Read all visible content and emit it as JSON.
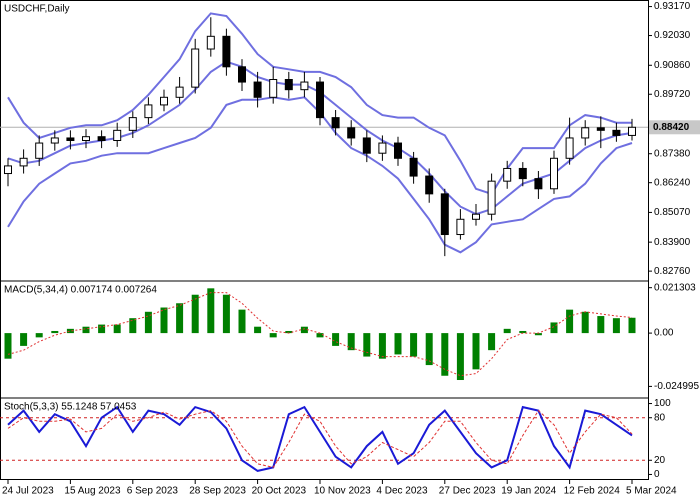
{
  "chart_data": [
    {
      "type": "candlestick",
      "title": "USDCHF,Daily",
      "categories": [
        "24 Jul 2023",
        null,
        null,
        null,
        "15 Aug 2023",
        null,
        null,
        null,
        "6 Sep 2023",
        null,
        null,
        null,
        "28 Sep 2023",
        null,
        null,
        null,
        "20 Oct 2023",
        null,
        null,
        null,
        "10 Nov 2023",
        null,
        null,
        null,
        "4 Dec 2023",
        null,
        null,
        null,
        "27 Dec 2023",
        null,
        null,
        null,
        "19 Jan 2024",
        null,
        null,
        null,
        "12 Feb 2024",
        null,
        null,
        null,
        "5 Mar 2024"
      ],
      "open": [
        0.866,
        0.869,
        0.872,
        0.878,
        0.88,
        0.879,
        0.8805,
        0.879,
        0.883,
        0.888,
        0.893,
        0.896,
        0.9,
        0.915,
        0.92,
        0.908,
        0.902,
        0.896,
        0.903,
        0.899,
        0.902,
        0.888,
        0.884,
        0.88,
        0.874,
        0.878,
        0.872,
        0.865,
        0.858,
        0.842,
        0.848,
        0.85,
        0.863,
        0.868,
        0.864,
        0.86,
        0.872,
        0.88,
        0.884,
        0.883,
        0.881
      ],
      "high": [
        0.872,
        0.8755,
        0.881,
        0.883,
        0.883,
        0.8835,
        0.883,
        0.886,
        0.8905,
        0.896,
        0.899,
        0.904,
        0.919,
        0.9275,
        0.923,
        0.911,
        0.906,
        0.908,
        0.906,
        0.906,
        0.904,
        0.891,
        0.887,
        0.883,
        0.881,
        0.8805,
        0.8745,
        0.868,
        0.86,
        0.852,
        0.854,
        0.866,
        0.871,
        0.8705,
        0.867,
        0.875,
        0.888,
        0.887,
        0.8885,
        0.886,
        0.8875
      ],
      "low": [
        0.861,
        0.866,
        0.869,
        0.875,
        0.8755,
        0.876,
        0.876,
        0.8765,
        0.88,
        0.8855,
        0.8905,
        0.8935,
        0.8975,
        0.912,
        0.9045,
        0.8985,
        0.892,
        0.8935,
        0.8955,
        0.896,
        0.885,
        0.881,
        0.877,
        0.8705,
        0.871,
        0.869,
        0.862,
        0.8545,
        0.8335,
        0.84,
        0.8455,
        0.8475,
        0.86,
        0.861,
        0.856,
        0.858,
        0.8695,
        0.877,
        0.876,
        0.8785,
        0.879
      ],
      "close": [
        0.869,
        0.872,
        0.878,
        0.88,
        0.879,
        0.8805,
        0.879,
        0.883,
        0.888,
        0.893,
        0.896,
        0.9,
        0.915,
        0.92,
        0.908,
        0.902,
        0.896,
        0.903,
        0.899,
        0.902,
        0.888,
        0.884,
        0.88,
        0.874,
        0.878,
        0.872,
        0.865,
        0.858,
        0.842,
        0.848,
        0.85,
        0.863,
        0.868,
        0.864,
        0.86,
        0.872,
        0.88,
        0.884,
        0.883,
        0.881,
        0.8842
      ],
      "series": [
        {
          "color": "#6f6fe0",
          "values": [
            0.896,
            0.886,
            0.88,
            0.882,
            0.884,
            0.885,
            0.885,
            0.887,
            0.891,
            0.897,
            0.904,
            0.911,
            0.922,
            0.929,
            0.928,
            0.921,
            0.913,
            0.908,
            0.907,
            0.906,
            0.906,
            0.904,
            0.9,
            0.893,
            0.889,
            0.888,
            0.888,
            0.884,
            0.881,
            0.871,
            0.86,
            0.858,
            0.868,
            0.876,
            0.876,
            0.876,
            0.885,
            0.889,
            0.888,
            0.886,
            0.886
          ]
        },
        {
          "color": "#6f6fe0",
          "values": [
            0.872,
            0.87,
            0.871,
            0.874,
            0.877,
            0.878,
            0.879,
            0.88,
            0.882,
            0.885,
            0.889,
            0.893,
            0.899,
            0.906,
            0.91,
            0.908,
            0.904,
            0.902,
            0.901,
            0.901,
            0.898,
            0.893,
            0.888,
            0.883,
            0.879,
            0.876,
            0.872,
            0.866,
            0.859,
            0.853,
            0.85,
            0.852,
            0.857,
            0.862,
            0.864,
            0.866,
            0.871,
            0.876,
            0.879,
            0.881,
            0.882
          ]
        },
        {
          "color": "#6f6fe0",
          "values": [
            0.845,
            0.855,
            0.862,
            0.866,
            0.87,
            0.871,
            0.873,
            0.874,
            0.874,
            0.874,
            0.876,
            0.878,
            0.88,
            0.884,
            0.893,
            0.895,
            0.895,
            0.896,
            0.895,
            0.896,
            0.89,
            0.882,
            0.876,
            0.873,
            0.869,
            0.864,
            0.856,
            0.848,
            0.838,
            0.835,
            0.839,
            0.846,
            0.847,
            0.848,
            0.852,
            0.856,
            0.857,
            0.862,
            0.87,
            0.876,
            0.878
          ]
        }
      ],
      "ylim": [
        0.8245,
        0.9335
      ],
      "yticks": [
        {
          "value": 0.9317,
          "label": "0.93170"
        },
        {
          "value": 0.9203,
          "label": "0.92030"
        },
        {
          "value": 0.9086,
          "label": "0.90860"
        },
        {
          "value": 0.8972,
          "label": "0.89720"
        },
        {
          "value": 0.8738,
          "label": "0.87380"
        },
        {
          "value": 0.8624,
          "label": "0.86240"
        },
        {
          "value": 0.8507,
          "label": "0.85070"
        },
        {
          "value": 0.839,
          "label": "0.83900"
        },
        {
          "value": 0.8276,
          "label": "0.82760"
        }
      ],
      "current_price": {
        "value": 0.8842,
        "label": "0.88420"
      },
      "bull_color": "#ffffff",
      "bear_color": "#000000"
    },
    {
      "type": "macd",
      "title": "MACD(5,34,4) 0.007174 0.007264",
      "series": [
        {
          "kind": "bar",
          "color": "#008000",
          "values": [
            -0.012,
            -0.006,
            -0.002,
            0.001,
            0.002,
            0.003,
            0.004,
            0.004,
            0.007,
            0.01,
            0.012,
            0.014,
            0.018,
            0.021,
            0.018,
            0.011,
            0.003,
            -0.002,
            0.001,
            0.003,
            -0.002,
            -0.006,
            -0.008,
            -0.011,
            -0.012,
            -0.01,
            -0.011,
            -0.015,
            -0.02,
            -0.022,
            -0.017,
            -0.008,
            0.002,
            0.001,
            -0.001,
            0.005,
            0.011,
            0.01,
            0.008,
            0.007,
            0.0072
          ]
        },
        {
          "kind": "line",
          "color": "#e03030",
          "dash": "2,2",
          "values": [
            -0.01,
            -0.008,
            -0.004,
            -0.001,
            0.001,
            0.002,
            0.003,
            0.004,
            0.006,
            0.008,
            0.011,
            0.013,
            0.016,
            0.019,
            0.019,
            0.014,
            0.007,
            0.001,
            0.0,
            0.002,
            0.0,
            -0.004,
            -0.007,
            -0.009,
            -0.011,
            -0.011,
            -0.011,
            -0.013,
            -0.017,
            -0.02,
            -0.019,
            -0.012,
            -0.003,
            0.0,
            0.0,
            0.003,
            0.008,
            0.01,
            0.009,
            0.008,
            0.0073
          ]
        }
      ],
      "ylim": [
        -0.0295,
        0.0235
      ],
      "yticks": [
        0.021303,
        {
          "value": 0,
          "label": "0.00"
        },
        -0.024995
      ]
    },
    {
      "type": "stochastic",
      "title": "Stoch(5,3,3) 55.1248 57.0453",
      "series": [
        {
          "kind": "line",
          "color": "#1a1ad6",
          "width": 2,
          "values": [
            70,
            90,
            60,
            85,
            75,
            40,
            80,
            95,
            60,
            90,
            85,
            70,
            95,
            88,
            65,
            20,
            5,
            10,
            85,
            95,
            60,
            25,
            10,
            40,
            60,
            15,
            30,
            70,
            90,
            60,
            30,
            10,
            20,
            95,
            90,
            40,
            10,
            90,
            85,
            70,
            55.12
          ]
        },
        {
          "kind": "line",
          "color": "#e03030",
          "dash": "3,2",
          "width": 1,
          "values": [
            65,
            80,
            75,
            75,
            78,
            60,
            65,
            85,
            75,
            80,
            88,
            78,
            85,
            90,
            75,
            40,
            15,
            10,
            45,
            85,
            75,
            40,
            15,
            25,
            45,
            35,
            25,
            45,
            75,
            75,
            45,
            20,
            15,
            55,
            90,
            70,
            30,
            60,
            85,
            80,
            57.05
          ]
        }
      ],
      "ylim": [
        -5,
        105
      ],
      "yticks": [
        100,
        80,
        20,
        0
      ],
      "level_lines": [
        20,
        80
      ],
      "level_color": "#d02020"
    }
  ]
}
